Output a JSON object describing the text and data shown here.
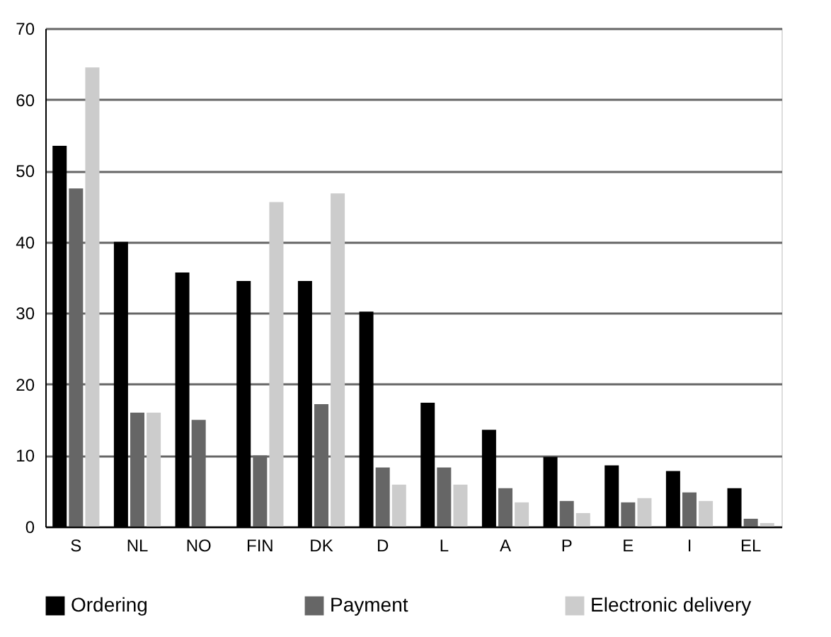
{
  "chart_data": {
    "type": "bar",
    "categories": [
      "S",
      "NL",
      "NO",
      "FIN",
      "DK",
      "D",
      "L",
      "A",
      "P",
      "E",
      "I",
      "EL"
    ],
    "series": [
      {
        "name": "Ordering",
        "color": "#000000",
        "values": [
          53.5,
          40,
          35.7,
          34.5,
          34.5,
          30.2,
          17.4,
          13.6,
          9.8,
          8.6,
          7.8,
          5.4
        ]
      },
      {
        "name": "Payment",
        "color": "#666666",
        "values": [
          47.5,
          16,
          15,
          10,
          17.2,
          8.3,
          8.3,
          5.4,
          3.6,
          3.4,
          4.8,
          1.1
        ]
      },
      {
        "name": "Electronic delivery",
        "color": "#cccccc",
        "values": [
          64.5,
          16,
          null,
          45.6,
          46.8,
          5.9,
          5.9,
          3.4,
          1.9,
          4.0,
          3.6,
          0.5
        ]
      }
    ],
    "ylim": [
      0,
      70
    ],
    "yticks": [
      0,
      10,
      20,
      30,
      40,
      50,
      60,
      70
    ],
    "grid": "y",
    "legend": "bottom"
  }
}
